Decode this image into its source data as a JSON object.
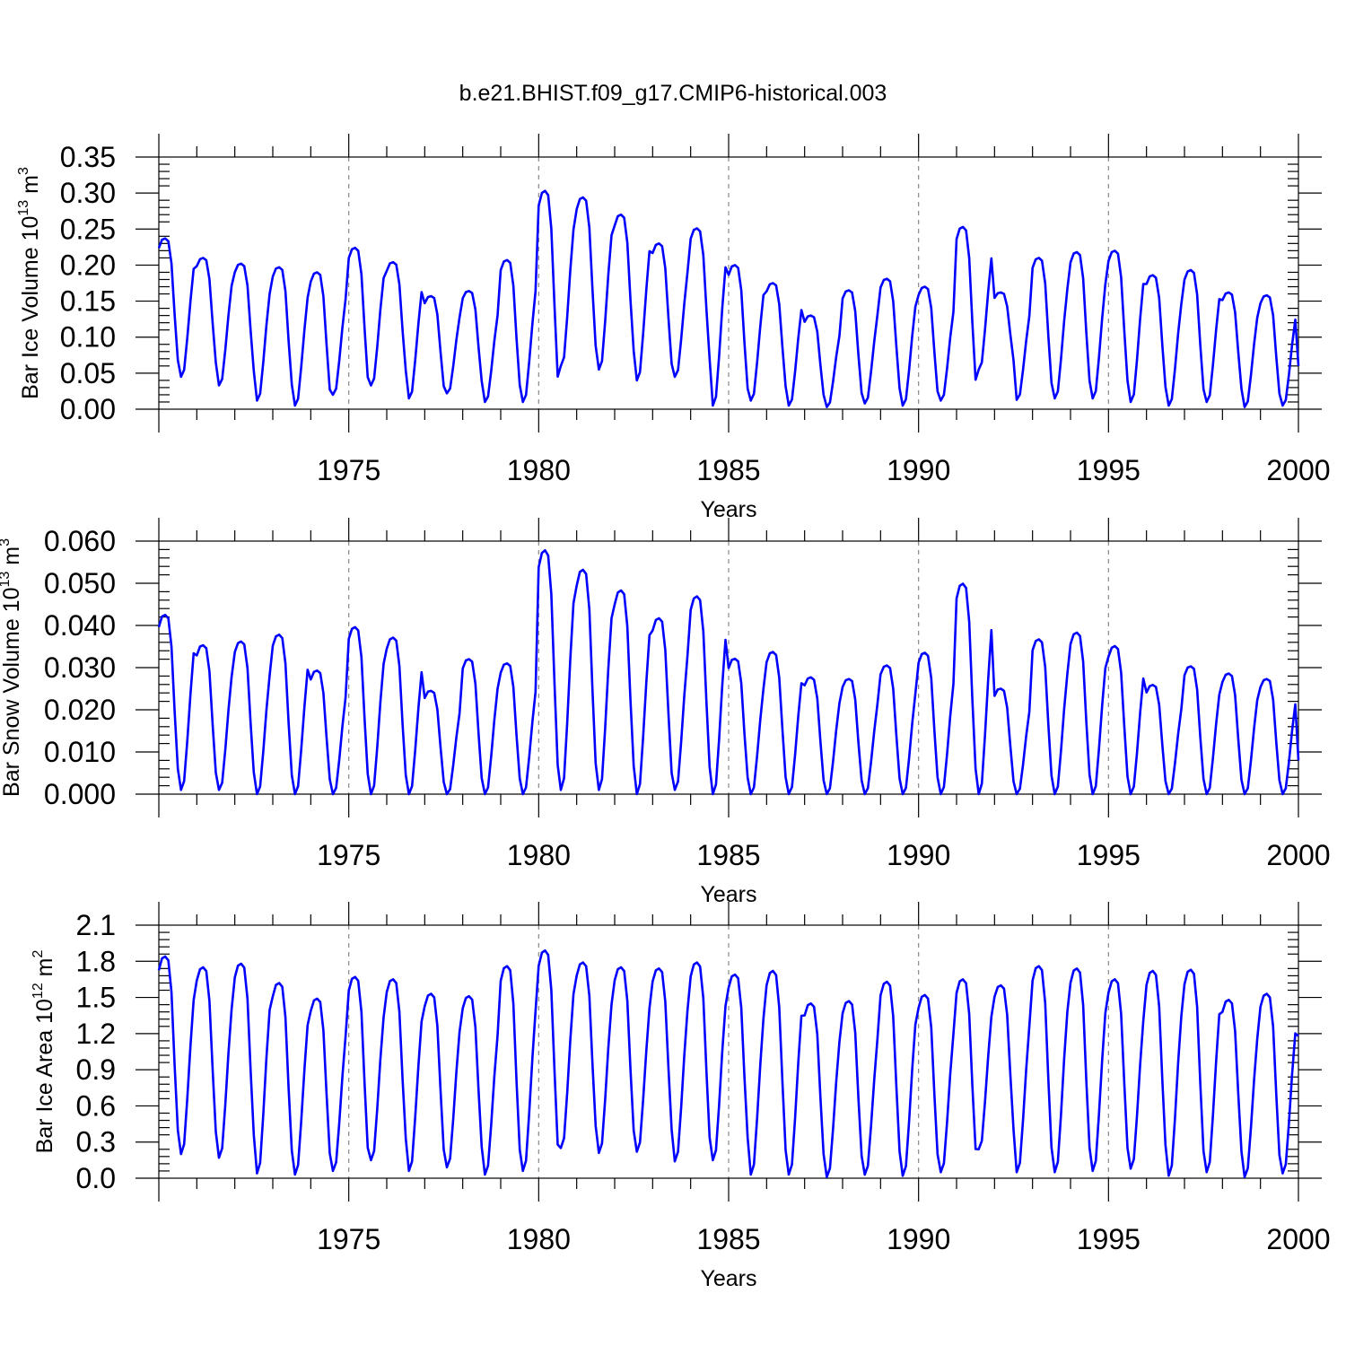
{
  "figure_title": "b.e21.BHIST.f09_g17.CMIP6-historical.003",
  "chart_data": [
    {
      "type": "line",
      "title": "b.e21.BHIST.f09_g17.CMIP6-historical.003",
      "xlabel": "Years",
      "ylabel": "Bar Ice Volume 10^13 m^3",
      "ylabel_parts": {
        "pre": "Bar Ice Volume 10",
        "exp1": "13",
        "mid": " m",
        "exp2": "3"
      },
      "xlim": [
        1970,
        2000
      ],
      "ylim": [
        0,
        0.35
      ],
      "yticks": [
        0.0,
        0.05,
        0.1,
        0.15,
        0.2,
        0.25,
        0.3,
        0.35
      ],
      "ytick_labels": [
        "0.00",
        "0.05",
        "0.10",
        "0.15",
        "0.20",
        "0.25",
        "0.30",
        "0.35"
      ],
      "xticks": [
        1975,
        1980,
        1985,
        1990,
        1995,
        2000
      ],
      "xtick_labels": [
        "1975",
        "1980",
        "1985",
        "1990",
        "1995",
        "2000"
      ],
      "grid": "x-dashed",
      "line_color": "#0000ff",
      "series": [
        {
          "name": "Bar Ice Volume",
          "start_year": 1970.0,
          "interval_years": 0.0833333,
          "monthly_min": [
            0.045,
            0.033,
            0.012,
            0.005,
            0.02,
            0.033,
            0.015,
            0.022,
            0.01,
            0.01,
            0.06,
            0.055,
            0.04,
            0.045,
            0.005,
            0.012,
            0.005,
            0.003,
            0.008,
            0.005,
            0.012,
            0.055,
            0.013,
            0.015,
            0.015,
            0.01,
            0.005,
            0.01,
            0.003,
            0.005
          ],
          "monthly_max": [
            0.237,
            0.21,
            0.202,
            0.197,
            0.19,
            0.224,
            0.204,
            0.157,
            0.164,
            0.207,
            0.303,
            0.294,
            0.27,
            0.23,
            0.251,
            0.2,
            0.175,
            0.13,
            0.165,
            0.181,
            0.17,
            0.253,
            0.162,
            0.21,
            0.218,
            0.22,
            0.186,
            0.193,
            0.162,
            0.158
          ],
          "final_value": 0.06
        }
      ]
    },
    {
      "type": "line",
      "xlabel": "Years",
      "ylabel": "Bar Snow Volume 10^13 m^3",
      "ylabel_parts": {
        "pre": "Bar Snow Volume 10",
        "exp1": "13",
        "mid": " m",
        "exp2": "3"
      },
      "xlim": [
        1970,
        2000
      ],
      "ylim": [
        0,
        0.06
      ],
      "yticks": [
        0.0,
        0.01,
        0.02,
        0.03,
        0.04,
        0.05,
        0.06
      ],
      "ytick_labels": [
        "0.000",
        "0.010",
        "0.020",
        "0.030",
        "0.040",
        "0.050",
        "0.060"
      ],
      "xticks": [
        1975,
        1980,
        1985,
        1990,
        1995,
        2000
      ],
      "xtick_labels": [
        "1975",
        "1980",
        "1985",
        "1990",
        "1995",
        "2000"
      ],
      "grid": "x-dashed",
      "line_color": "#0000ff",
      "series": [
        {
          "name": "Bar Snow Volume",
          "start_year": 1970.0,
          "interval_years": 0.0833333,
          "monthly_min": [
            0.001,
            0.001,
            0.0,
            0.0,
            0.0,
            0.0,
            0.0,
            0.0,
            0.0,
            0.0,
            0.001,
            0.001,
            0.0,
            0.001,
            0.0,
            0.0,
            0.0,
            0.0,
            0.0,
            0.0,
            0.0,
            0.0,
            0.0,
            0.0,
            0.0,
            0.0,
            0.0,
            0.0,
            0.0,
            0.0
          ],
          "monthly_max": [
            0.0425,
            0.0353,
            0.0362,
            0.0378,
            0.0293,
            0.0396,
            0.0371,
            0.0245,
            0.032,
            0.031,
            0.0578,
            0.0532,
            0.0483,
            0.0417,
            0.0469,
            0.0321,
            0.0337,
            0.0277,
            0.0273,
            0.0305,
            0.0335,
            0.0499,
            0.025,
            0.0367,
            0.0383,
            0.0351,
            0.0259,
            0.0303,
            0.0286,
            0.0273
          ],
          "final_value": 0.008
        }
      ]
    },
    {
      "type": "line",
      "xlabel": "Years",
      "ylabel": "Bar Ice Area 10^12 m^2",
      "ylabel_parts": {
        "pre": "Bar Ice Area 10",
        "exp1": "12",
        "mid": " m",
        "exp2": "2"
      },
      "xlim": [
        1970,
        2000
      ],
      "ylim": [
        0,
        2.1
      ],
      "yticks": [
        0.0,
        0.3,
        0.6,
        0.9,
        1.2,
        1.5,
        1.8,
        2.1
      ],
      "ytick_labels": [
        "0.0",
        "0.3",
        "0.6",
        "0.9",
        "1.2",
        "1.5",
        "1.8",
        "2.1"
      ],
      "xticks": [
        1975,
        1980,
        1985,
        1990,
        1995,
        2000
      ],
      "xtick_labels": [
        "1975",
        "1980",
        "1985",
        "1990",
        "1995",
        "2000"
      ],
      "grid": "x-dashed",
      "line_color": "#0000ff",
      "series": [
        {
          "name": "Bar Ice Area",
          "start_year": 1970.0,
          "interval_years": 0.0833333,
          "monthly_min": [
            0.2,
            0.17,
            0.04,
            0.03,
            0.06,
            0.15,
            0.06,
            0.09,
            0.03,
            0.06,
            0.25,
            0.21,
            0.22,
            0.14,
            0.15,
            0.03,
            0.03,
            0.01,
            0.03,
            0.02,
            0.05,
            0.24,
            0.05,
            0.05,
            0.06,
            0.08,
            0.02,
            0.05,
            0.01,
            0.04
          ],
          "monthly_max": [
            1.84,
            1.75,
            1.78,
            1.62,
            1.49,
            1.67,
            1.65,
            1.53,
            1.51,
            1.76,
            1.89,
            1.79,
            1.75,
            1.74,
            1.79,
            1.69,
            1.72,
            1.45,
            1.47,
            1.63,
            1.52,
            1.65,
            1.6,
            1.76,
            1.74,
            1.65,
            1.72,
            1.73,
            1.48,
            1.53
          ],
          "final_value": 1.18
        }
      ]
    }
  ]
}
